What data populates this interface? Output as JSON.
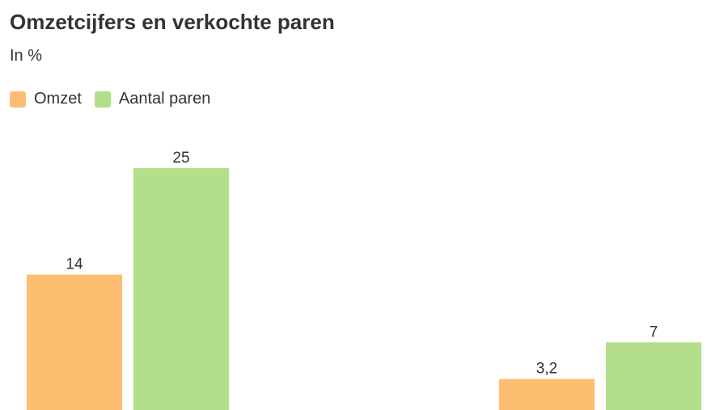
{
  "chart_data": {
    "type": "bar",
    "title": "Omzetcijfers en verkochte paren",
    "subtitle": "In %",
    "categories": [
      "",
      ""
    ],
    "series": [
      {
        "name": "Omzet",
        "color": "#fdbe71",
        "values": [
          14,
          3.2
        ],
        "labels": [
          "14",
          "3,2"
        ]
      },
      {
        "name": "Aantal paren",
        "color": "#b3df8a",
        "values": [
          25,
          7
        ],
        "labels": [
          "25",
          "7"
        ]
      }
    ],
    "ylim": [
      0,
      25
    ],
    "grid": false,
    "legend_position": "top-left"
  }
}
